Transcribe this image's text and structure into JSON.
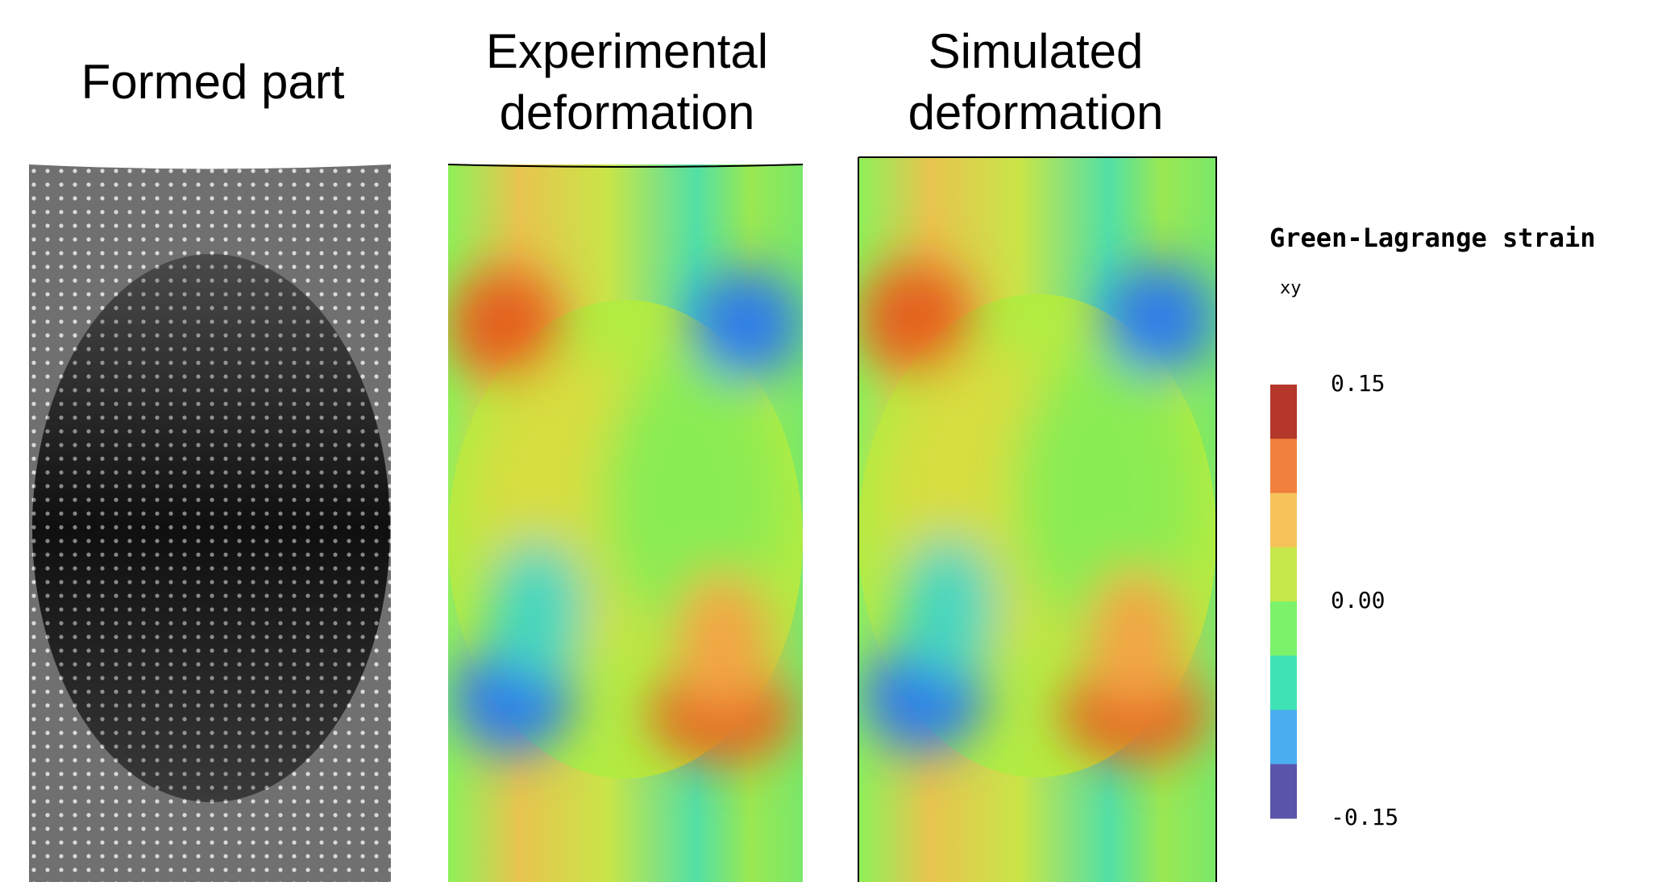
{
  "panels": [
    {
      "title": [
        "Formed part"
      ]
    },
    {
      "title": [
        "Experimental",
        "deformation"
      ]
    },
    {
      "title": [
        "Simulated",
        "deformation"
      ]
    }
  ],
  "colorbar": {
    "title": "Green-Lagrange strain",
    "component": "xy",
    "lim": [
      -0.15,
      0.15
    ],
    "colors": [
      "#b5372b",
      "#f0803c",
      "#f6c25a",
      "#c6e84a",
      "#7cf26a",
      "#3fe2b5",
      "#4aaef0",
      "#5a56ab"
    ],
    "ticks": [
      {
        "value": 0.15,
        "label": "0.15"
      },
      {
        "value": 0,
        "label": "0.00"
      },
      {
        "value": -0.15,
        "label": "-0.15"
      }
    ]
  }
}
